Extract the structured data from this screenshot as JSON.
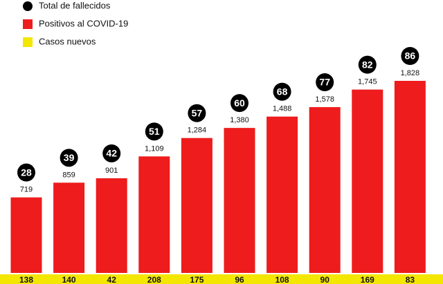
{
  "chart_data": {
    "type": "bar",
    "series": [
      {
        "name": "Total de fallecidos",
        "color": "#000000",
        "values": [
          28,
          39,
          42,
          51,
          57,
          60,
          68,
          77,
          82,
          86
        ]
      },
      {
        "name": "Positivos al COVID-19",
        "color": "#ee1c1c",
        "values": [
          719,
          859,
          901,
          1109,
          1284,
          1380,
          1488,
          1578,
          1745,
          1828
        ],
        "value_labels": [
          "719",
          "859",
          "901",
          "1,109",
          "1,284",
          "1,380",
          "1,488",
          "1,578",
          "1,745",
          "1,828"
        ]
      },
      {
        "name": "Casos nuevos",
        "color": "#f3e600",
        "values": [
          138,
          140,
          42,
          208,
          175,
          96,
          108,
          90,
          169,
          83
        ]
      }
    ]
  }
}
